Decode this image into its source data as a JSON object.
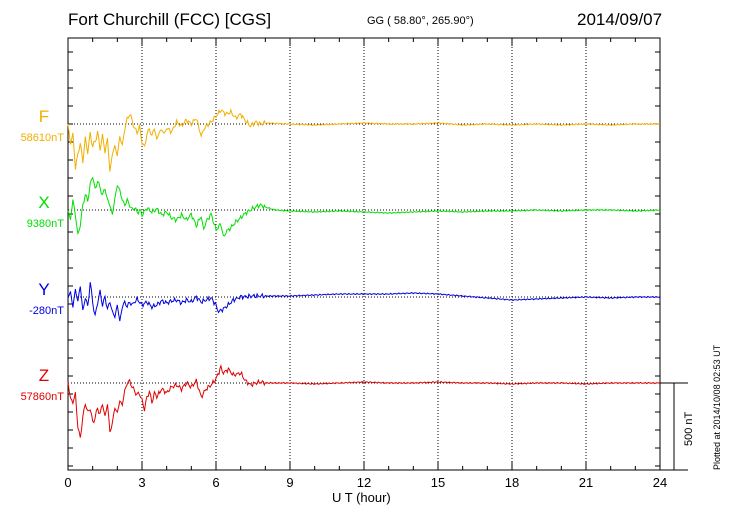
{
  "header": {
    "title": "Fort Churchill (FCC)  [CGS]",
    "coords": "GG ( 58.80°, 265.90°)",
    "date": "2014/09/07"
  },
  "footer": {
    "plotted": "Plotted at 2014/10/08 02:53 UT"
  },
  "chart_data": {
    "type": "line",
    "title": "Fort Churchill (FCC)  [CGS]",
    "xlabel": "U T (hour)",
    "xlim": [
      0,
      24
    ],
    "xticks": [
      "0",
      "3",
      "6",
      "9",
      "12",
      "15",
      "18",
      "21",
      "24"
    ],
    "grid": "vertical dotted lines every 3 hours",
    "scale_bar": "500 nT",
    "series": [
      {
        "name": "F",
        "baseline_label": "58610nT",
        "color": "#F0B000",
        "points": [
          [
            0,
            0
          ],
          [
            0.1,
            -20
          ],
          [
            0.2,
            -10
          ],
          [
            0.3,
            -45
          ],
          [
            0.4,
            -30
          ],
          [
            0.5,
            -20
          ],
          [
            0.6,
            -38
          ],
          [
            0.7,
            -15
          ],
          [
            0.8,
            -28
          ],
          [
            0.9,
            -10
          ],
          [
            1.0,
            -22
          ],
          [
            1.1,
            -18
          ],
          [
            1.2,
            -8
          ],
          [
            1.3,
            -25
          ],
          [
            1.4,
            -12
          ],
          [
            1.5,
            -28
          ],
          [
            1.6,
            -15
          ],
          [
            1.7,
            -48
          ],
          [
            1.8,
            -30
          ],
          [
            1.9,
            -22
          ],
          [
            2.0,
            -32
          ],
          [
            2.1,
            -12
          ],
          [
            2.2,
            -22
          ],
          [
            2.3,
            -5
          ],
          [
            2.4,
            5
          ],
          [
            2.5,
            10
          ],
          [
            2.6,
            4
          ],
          [
            2.7,
            -5
          ],
          [
            2.8,
            -8
          ],
          [
            2.9,
            -3
          ],
          [
            3.0,
            -18
          ],
          [
            3.1,
            -24
          ],
          [
            3.2,
            -10
          ],
          [
            3.3,
            -5
          ],
          [
            3.4,
            -12
          ],
          [
            3.5,
            -4
          ],
          [
            3.6,
            -16
          ],
          [
            3.7,
            -8
          ],
          [
            3.8,
            -6
          ],
          [
            3.9,
            -10
          ],
          [
            4.0,
            -4
          ],
          [
            4.2,
            -8
          ],
          [
            4.4,
            2
          ],
          [
            4.6,
            -2
          ],
          [
            4.8,
            4
          ],
          [
            5.0,
            0
          ],
          [
            5.2,
            6
          ],
          [
            5.4,
            -12
          ],
          [
            5.5,
            -6
          ],
          [
            5.6,
            -2
          ],
          [
            5.8,
            2
          ],
          [
            6.0,
            8
          ],
          [
            6.2,
            14
          ],
          [
            6.4,
            10
          ],
          [
            6.6,
            12
          ],
          [
            6.8,
            6
          ],
          [
            7.0,
            10
          ],
          [
            7.2,
            3
          ],
          [
            7.4,
            -2
          ],
          [
            7.6,
            2
          ],
          [
            7.8,
            0
          ],
          [
            8.0,
            1
          ],
          [
            9,
            0
          ],
          [
            10,
            -1
          ],
          [
            11,
            0
          ],
          [
            12,
            1
          ],
          [
            13,
            0
          ],
          [
            14,
            0
          ],
          [
            15,
            1
          ],
          [
            16,
            -1
          ],
          [
            17,
            0
          ],
          [
            18,
            -1
          ],
          [
            19,
            0
          ],
          [
            20,
            -1
          ],
          [
            21,
            0
          ],
          [
            22,
            -1
          ],
          [
            23,
            0
          ],
          [
            24,
            0
          ]
        ]
      },
      {
        "name": "X",
        "baseline_label": "9380nT",
        "color": "#00E000",
        "points": [
          [
            0,
            0
          ],
          [
            0.1,
            -10
          ],
          [
            0.2,
            10
          ],
          [
            0.3,
            -5
          ],
          [
            0.4,
            -25
          ],
          [
            0.5,
            -15
          ],
          [
            0.6,
            5
          ],
          [
            0.7,
            15
          ],
          [
            0.8,
            10
          ],
          [
            0.9,
            25
          ],
          [
            1.0,
            35
          ],
          [
            1.1,
            20
          ],
          [
            1.2,
            30
          ],
          [
            1.3,
            22
          ],
          [
            1.4,
            15
          ],
          [
            1.5,
            22
          ],
          [
            1.6,
            10
          ],
          [
            1.7,
            5
          ],
          [
            1.8,
            -5
          ],
          [
            1.9,
            12
          ],
          [
            2.0,
            25
          ],
          [
            2.1,
            20
          ],
          [
            2.2,
            10
          ],
          [
            2.3,
            5
          ],
          [
            2.4,
            10
          ],
          [
            2.5,
            5
          ],
          [
            2.6,
            0
          ],
          [
            2.7,
            3
          ],
          [
            2.8,
            -3
          ],
          [
            2.9,
            0
          ],
          [
            3.0,
            -5
          ],
          [
            3.2,
            2
          ],
          [
            3.4,
            -2
          ],
          [
            3.6,
            1
          ],
          [
            3.8,
            -5
          ],
          [
            4.0,
            -2
          ],
          [
            4.2,
            -8
          ],
          [
            4.4,
            -10
          ],
          [
            4.6,
            -5
          ],
          [
            4.8,
            -10
          ],
          [
            5.0,
            -4
          ],
          [
            5.2,
            -16
          ],
          [
            5.4,
            -6
          ],
          [
            5.5,
            -20
          ],
          [
            5.6,
            -12
          ],
          [
            5.8,
            -4
          ],
          [
            6.0,
            -20
          ],
          [
            6.2,
            -14
          ],
          [
            6.3,
            -28
          ],
          [
            6.4,
            -22
          ],
          [
            6.6,
            -18
          ],
          [
            6.8,
            -12
          ],
          [
            7.0,
            -8
          ],
          [
            7.2,
            -3
          ],
          [
            7.4,
            0
          ],
          [
            7.6,
            3
          ],
          [
            7.8,
            5
          ],
          [
            8.0,
            3
          ],
          [
            8.4,
            0
          ],
          [
            9,
            -1
          ],
          [
            10,
            -2
          ],
          [
            11,
            -1
          ],
          [
            12,
            -2
          ],
          [
            13,
            -3
          ],
          [
            14,
            -2
          ],
          [
            15,
            -1
          ],
          [
            16,
            -2
          ],
          [
            17,
            -1
          ],
          [
            18,
            -1
          ],
          [
            19,
            0
          ],
          [
            20,
            -1
          ],
          [
            21,
            0
          ],
          [
            22,
            0
          ],
          [
            23,
            -1
          ],
          [
            24,
            0
          ]
        ]
      },
      {
        "name": "Y",
        "baseline_label": "-280nT",
        "color": "#0000E0",
        "points": [
          [
            0,
            0
          ],
          [
            0.1,
            5
          ],
          [
            0.2,
            -10
          ],
          [
            0.3,
            8
          ],
          [
            0.4,
            -5
          ],
          [
            0.5,
            12
          ],
          [
            0.6,
            -15
          ],
          [
            0.7,
            0
          ],
          [
            0.8,
            -10
          ],
          [
            0.9,
            15
          ],
          [
            1.0,
            -5
          ],
          [
            1.1,
            -20
          ],
          [
            1.2,
            -5
          ],
          [
            1.3,
            5
          ],
          [
            1.4,
            -8
          ],
          [
            1.5,
            0
          ],
          [
            1.6,
            -12
          ],
          [
            1.7,
            -5
          ],
          [
            1.8,
            -15
          ],
          [
            1.9,
            -20
          ],
          [
            2.0,
            -8
          ],
          [
            2.1,
            -25
          ],
          [
            2.2,
            -10
          ],
          [
            2.3,
            -5
          ],
          [
            2.4,
            -10
          ],
          [
            2.5,
            -5
          ],
          [
            2.6,
            -8
          ],
          [
            2.8,
            -2
          ],
          [
            3.0,
            -8
          ],
          [
            3.2,
            -5
          ],
          [
            3.4,
            -10
          ],
          [
            3.6,
            -8
          ],
          [
            3.8,
            -4
          ],
          [
            4.0,
            -6
          ],
          [
            4.2,
            -4
          ],
          [
            4.4,
            -3
          ],
          [
            4.6,
            -6
          ],
          [
            4.8,
            -3
          ],
          [
            5.0,
            -5
          ],
          [
            5.2,
            0
          ],
          [
            5.4,
            -5
          ],
          [
            5.6,
            -3
          ],
          [
            5.8,
            -1
          ],
          [
            6.0,
            -8
          ],
          [
            6.1,
            -15
          ],
          [
            6.3,
            -12
          ],
          [
            6.5,
            -8
          ],
          [
            6.7,
            -3
          ],
          [
            7.0,
            0
          ],
          [
            7.5,
            1
          ],
          [
            8.0,
            1
          ],
          [
            9,
            1
          ],
          [
            10,
            2
          ],
          [
            11,
            3
          ],
          [
            12,
            3
          ],
          [
            13,
            3
          ],
          [
            14,
            4
          ],
          [
            15,
            3
          ],
          [
            16,
            1
          ],
          [
            17,
            -1
          ],
          [
            18,
            -3
          ],
          [
            19,
            -2
          ],
          [
            20,
            -1
          ],
          [
            21,
            0
          ],
          [
            22,
            -1
          ],
          [
            23,
            0
          ],
          [
            24,
            0
          ]
        ]
      },
      {
        "name": "Z",
        "baseline_label": "57860nT",
        "color": "#E00000",
        "points": [
          [
            0,
            0
          ],
          [
            0.1,
            -15
          ],
          [
            0.2,
            -20
          ],
          [
            0.3,
            -10
          ],
          [
            0.4,
            -45
          ],
          [
            0.5,
            -55
          ],
          [
            0.6,
            -35
          ],
          [
            0.7,
            -20
          ],
          [
            0.8,
            -30
          ],
          [
            0.9,
            -25
          ],
          [
            1.0,
            -40
          ],
          [
            1.1,
            -35
          ],
          [
            1.2,
            -25
          ],
          [
            1.3,
            -32
          ],
          [
            1.4,
            -20
          ],
          [
            1.5,
            -35
          ],
          [
            1.6,
            -20
          ],
          [
            1.7,
            -50
          ],
          [
            1.8,
            -40
          ],
          [
            1.9,
            -25
          ],
          [
            2.0,
            -30
          ],
          [
            2.1,
            -18
          ],
          [
            2.2,
            -22
          ],
          [
            2.3,
            -8
          ],
          [
            2.4,
            0
          ],
          [
            2.5,
            2
          ],
          [
            2.6,
            -4
          ],
          [
            2.7,
            -8
          ],
          [
            2.8,
            -12
          ],
          [
            2.9,
            -10
          ],
          [
            3.0,
            -18
          ],
          [
            3.1,
            -26
          ],
          [
            3.2,
            -15
          ],
          [
            3.3,
            -8
          ],
          [
            3.4,
            -20
          ],
          [
            3.5,
            -10
          ],
          [
            3.6,
            -14
          ],
          [
            3.8,
            -6
          ],
          [
            4.0,
            -10
          ],
          [
            4.2,
            -4
          ],
          [
            4.4,
            -2
          ],
          [
            4.6,
            -6
          ],
          [
            4.8,
            0
          ],
          [
            5.0,
            -4
          ],
          [
            5.2,
            2
          ],
          [
            5.4,
            -14
          ],
          [
            5.6,
            -6
          ],
          [
            5.8,
            -2
          ],
          [
            6.0,
            4
          ],
          [
            6.2,
            16
          ],
          [
            6.3,
            10
          ],
          [
            6.5,
            14
          ],
          [
            6.7,
            8
          ],
          [
            7.0,
            10
          ],
          [
            7.2,
            2
          ],
          [
            7.4,
            -2
          ],
          [
            7.6,
            0
          ],
          [
            7.8,
            1
          ],
          [
            8.0,
            0
          ],
          [
            9,
            0
          ],
          [
            10,
            -1
          ],
          [
            11,
            0
          ],
          [
            12,
            1
          ],
          [
            13,
            0
          ],
          [
            14,
            0
          ],
          [
            15,
            1
          ],
          [
            16,
            0
          ],
          [
            17,
            0
          ],
          [
            18,
            -1
          ],
          [
            19,
            0
          ],
          [
            20,
            0
          ],
          [
            21,
            -1
          ],
          [
            22,
            0
          ],
          [
            23,
            0
          ],
          [
            24,
            0
          ]
        ]
      }
    ]
  }
}
